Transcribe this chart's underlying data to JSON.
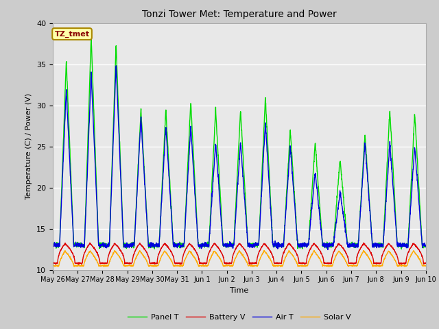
{
  "title": "Tonzi Tower Met: Temperature and Power",
  "xlabel": "Time",
  "ylabel": "Temperature (C) / Power (V)",
  "ylim": [
    10,
    40
  ],
  "annotation": "TZ_tmet",
  "legend_labels": [
    "Panel T",
    "Battery V",
    "Air T",
    "Solar V"
  ],
  "legend_colors": [
    "#00dd00",
    "#dd0000",
    "#0000dd",
    "#ffaa00"
  ],
  "fig_bg_color": "#cccccc",
  "plot_bg_color": "#e8e8e8",
  "tick_labels": [
    "May 26",
    "May 27",
    "May 28",
    "May 29",
    "May 30",
    "May 31",
    "Jun 1",
    "Jun 2",
    "Jun 3",
    "Jun 4",
    "Jun 5",
    "Jun 6",
    "Jun 7",
    "Jun 8",
    "Jun 9",
    "Jun 10"
  ],
  "n_days": 15,
  "panel_T_peaks": [
    35.5,
    38.5,
    37.5,
    29.5,
    29.5,
    30.5,
    29.5,
    29.5,
    31.0,
    27.0,
    25.5,
    23.5,
    26.5,
    29.5,
    29.0
  ],
  "air_T_peaks": [
    32.0,
    34.0,
    35.0,
    28.5,
    27.5,
    27.5,
    25.5,
    25.5,
    28.0,
    25.0,
    22.0,
    19.5,
    25.5,
    25.5,
    25.0
  ],
  "night_temp": 13.0,
  "battery_V_base": 10.8,
  "battery_V_peak": 13.2,
  "solar_V_base": 10.5,
  "solar_V_peak": 12.3
}
